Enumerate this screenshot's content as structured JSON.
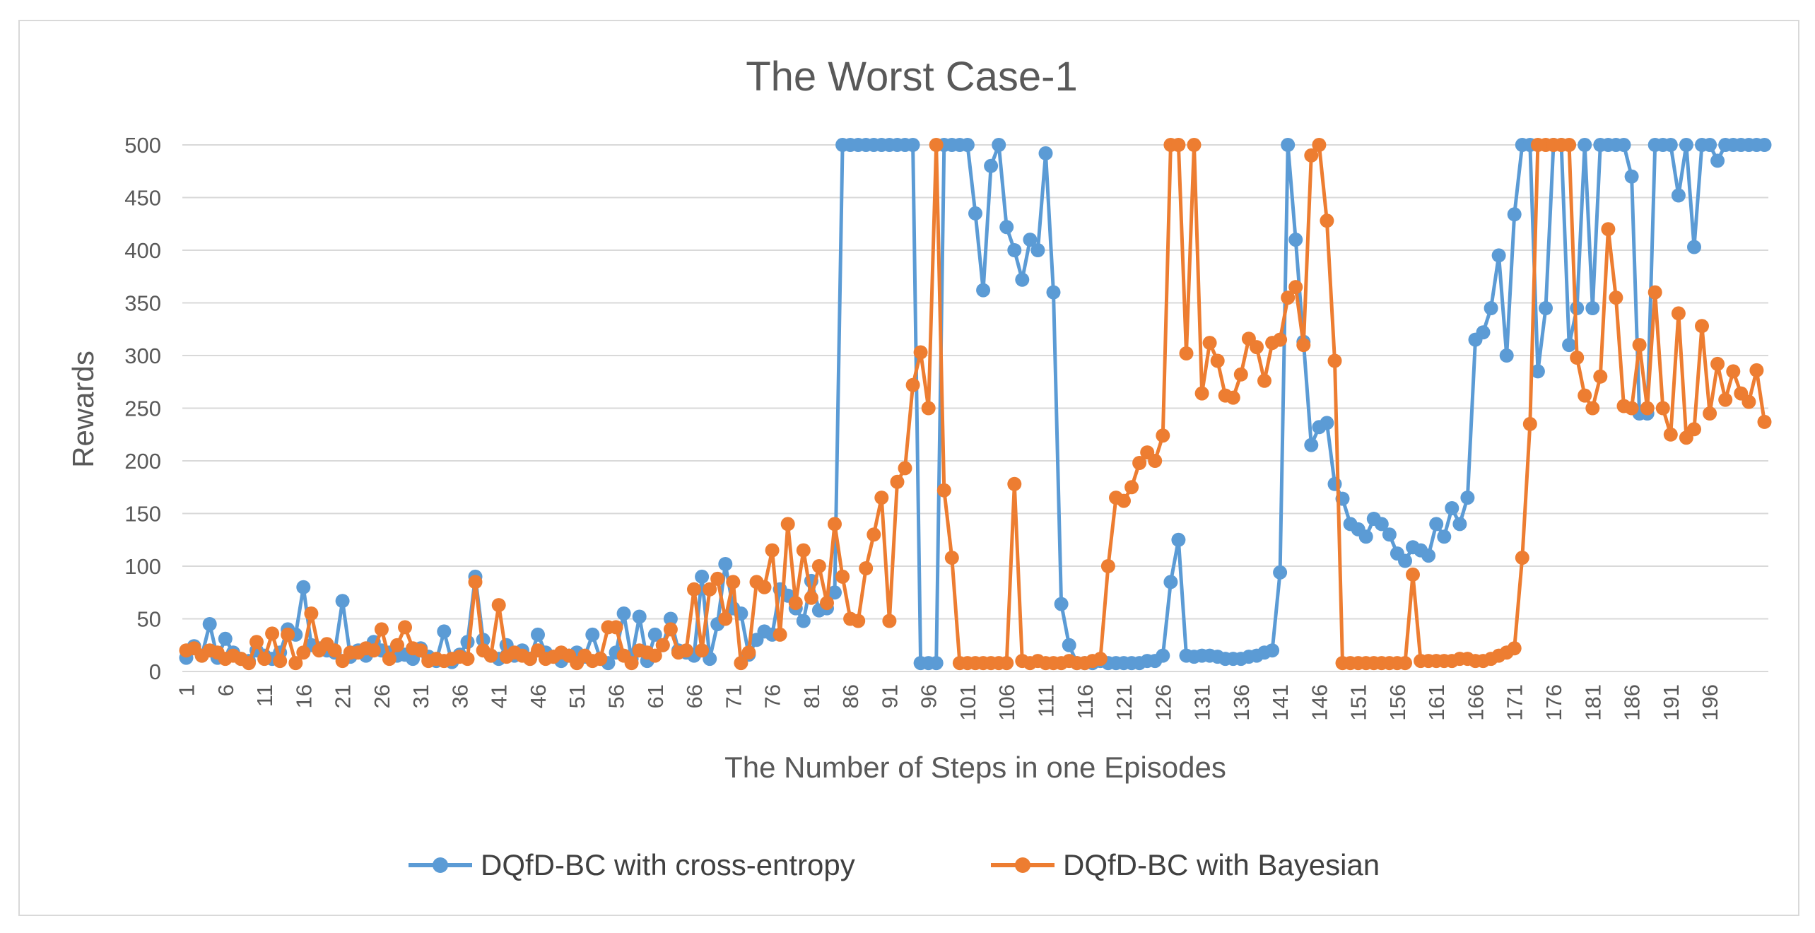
{
  "chart_data": {
    "type": "line",
    "title": "The Worst Case-1",
    "xlabel": "The Number of Steps in one Episodes",
    "ylabel": "Rewards",
    "ylim": [
      0,
      500
    ],
    "yticks": [
      0,
      50,
      100,
      150,
      200,
      250,
      300,
      350,
      400,
      450,
      500
    ],
    "x_tick_labels": [
      "1",
      "6",
      "11",
      "16",
      "21",
      "26",
      "31",
      "36",
      "41",
      "46",
      "51",
      "56",
      "61",
      "66",
      "71",
      "76",
      "81",
      "86",
      "91",
      "96",
      "101",
      "106",
      "111",
      "116",
      "121",
      "126",
      "131",
      "136",
      "141",
      "146",
      "151",
      "156",
      "161",
      "166",
      "171",
      "176",
      "181",
      "186",
      "191",
      "196"
    ],
    "grid": true,
    "legend_position": "bottom",
    "series": [
      {
        "name": "DQfD-BC with cross-entropy",
        "color": "#5B9BD5",
        "values": [
          13,
          24,
          15,
          45,
          13,
          31,
          18,
          12,
          10,
          20,
          15,
          12,
          18,
          40,
          35,
          80,
          25,
          22,
          20,
          18,
          67,
          14,
          20,
          15,
          28,
          20,
          18,
          15,
          16,
          12,
          22,
          14,
          10,
          38,
          9,
          16,
          28,
          90,
          30,
          15,
          12,
          25,
          15,
          20,
          12,
          35,
          18,
          14,
          10,
          15,
          18,
          14,
          35,
          12,
          8,
          18,
          55,
          12,
          52,
          10,
          35,
          25,
          50,
          20,
          18,
          15,
          90,
          12,
          45,
          102,
          60,
          55,
          16,
          30,
          38,
          35,
          78,
          72,
          60,
          48,
          86,
          58,
          60,
          75,
          500,
          500,
          500,
          500,
          500,
          500,
          500,
          500,
          500,
          500,
          8,
          8,
          8,
          500,
          500,
          500,
          500,
          435,
          362,
          480,
          500,
          422,
          400,
          372,
          410,
          400,
          492,
          360,
          64,
          25,
          8,
          8,
          8,
          10,
          8,
          8,
          8,
          8,
          8,
          10,
          10,
          15,
          85,
          125,
          15,
          14,
          15,
          15,
          14,
          12,
          12,
          12,
          14,
          15,
          18,
          20,
          94,
          500,
          410,
          313,
          215,
          232,
          236,
          178,
          164,
          140,
          135,
          128,
          145,
          140,
          130,
          112,
          105,
          118,
          115,
          110,
          140,
          128,
          155,
          140,
          165,
          315,
          322,
          345,
          395,
          300,
          434,
          500,
          500,
          285,
          345,
          500,
          500,
          310,
          345,
          500,
          345,
          500,
          500,
          500,
          500,
          470,
          245,
          245,
          500,
          500,
          500,
          452,
          500,
          403,
          500,
          500,
          485,
          500,
          500,
          500,
          500,
          500,
          500
        ]
      },
      {
        "name": "DQfD-BC with Bayesian",
        "color": "#ED7D31",
        "values": [
          20,
          22,
          15,
          20,
          18,
          12,
          15,
          12,
          8,
          28,
          12,
          36,
          10,
          35,
          8,
          18,
          55,
          20,
          26,
          20,
          10,
          18,
          18,
          22,
          20,
          40,
          12,
          25,
          42,
          22,
          20,
          10,
          12,
          10,
          12,
          14,
          12,
          85,
          20,
          15,
          63,
          14,
          18,
          15,
          12,
          20,
          12,
          14,
          18,
          15,
          8,
          15,
          10,
          12,
          42,
          42,
          15,
          8,
          20,
          18,
          15,
          25,
          40,
          18,
          20,
          78,
          20,
          78,
          88,
          50,
          85,
          8,
          18,
          85,
          80,
          115,
          35,
          140,
          65,
          115,
          70,
          100,
          65,
          140,
          90,
          50,
          48,
          98,
          130,
          165,
          48,
          180,
          193,
          272,
          303,
          250,
          500,
          172,
          108,
          8,
          8,
          8,
          8,
          8,
          8,
          8,
          178,
          10,
          8,
          10,
          8,
          8,
          8,
          10,
          8,
          8,
          10,
          12,
          100,
          165,
          162,
          175,
          198,
          208,
          200,
          224,
          500,
          500,
          302,
          500,
          264,
          312,
          295,
          262,
          260,
          282,
          316,
          308,
          276,
          312,
          315,
          355,
          365,
          310,
          490,
          500,
          428,
          295,
          8,
          8,
          8,
          8,
          8,
          8,
          8,
          8,
          8,
          92,
          10,
          10,
          10,
          10,
          10,
          12,
          12,
          10,
          10,
          12,
          15,
          18,
          22,
          108,
          235,
          500,
          500,
          500,
          500,
          500,
          298,
          262,
          250,
          280,
          420,
          355,
          252,
          250,
          310,
          250,
          360,
          250,
          225,
          340,
          222,
          230,
          328,
          245,
          292,
          258,
          285,
          264,
          256,
          286,
          237
        ]
      }
    ]
  }
}
